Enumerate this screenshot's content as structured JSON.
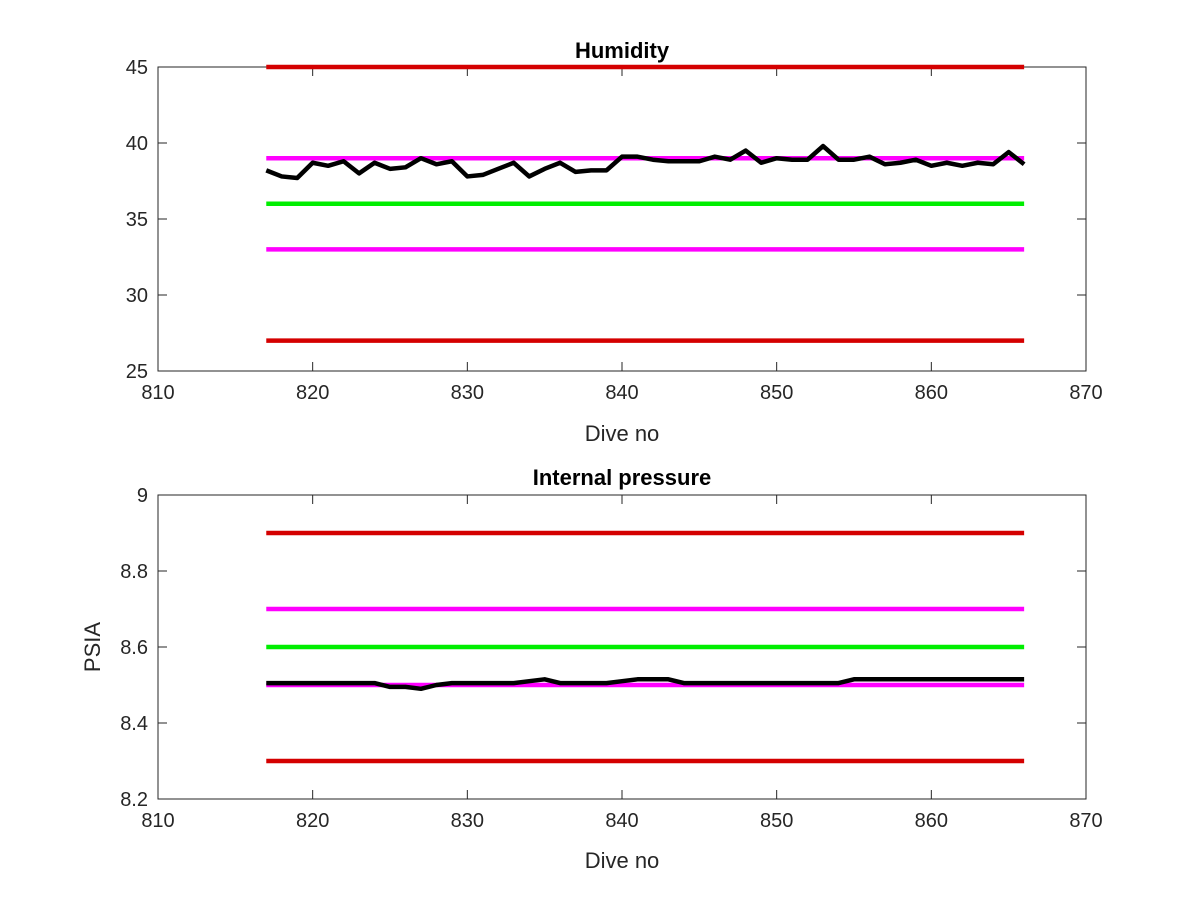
{
  "colors": {
    "series": "#000000",
    "red": "#d40000",
    "magenta": "#ff00ff",
    "green": "#00ee00",
    "axis": "#262626"
  },
  "chart_data": [
    {
      "type": "line",
      "title": "Humidity",
      "xlabel": "Dive no",
      "ylabel": "",
      "xlim": [
        810,
        870
      ],
      "ylim": [
        25,
        45
      ],
      "xticks": [
        810,
        820,
        830,
        840,
        850,
        860,
        870
      ],
      "yticks": [
        25,
        30,
        35,
        40,
        45
      ],
      "xtick_labels": [
        "810",
        "820",
        "830",
        "840",
        "850",
        "860",
        "870"
      ],
      "ytick_labels": [
        "25",
        "30",
        "35",
        "40",
        "45"
      ],
      "grid": false,
      "reference_lines": [
        {
          "y": 45,
          "x": [
            817,
            866
          ],
          "color": "red"
        },
        {
          "y": 39,
          "x": [
            817,
            866
          ],
          "color": "magenta"
        },
        {
          "y": 36,
          "x": [
            817,
            866
          ],
          "color": "green"
        },
        {
          "y": 33,
          "x": [
            817,
            866
          ],
          "color": "magenta"
        },
        {
          "y": 27,
          "x": [
            817,
            866
          ],
          "color": "red"
        }
      ],
      "series": [
        {
          "x": [
            817,
            818,
            819,
            820,
            821,
            822,
            823,
            824,
            825,
            826,
            827,
            828,
            829,
            830,
            831,
            832,
            833,
            834,
            835,
            836,
            837,
            838,
            839,
            840,
            841,
            842,
            843,
            844,
            845,
            846,
            847,
            848,
            849,
            850,
            851,
            852,
            853,
            854,
            855,
            856,
            857,
            858,
            859,
            860,
            861,
            862,
            863,
            864,
            865,
            866
          ],
          "y": [
            38.2,
            37.8,
            37.7,
            38.7,
            38.5,
            38.8,
            38.0,
            38.7,
            38.3,
            38.4,
            39.0,
            38.6,
            38.8,
            37.8,
            37.9,
            38.3,
            38.7,
            37.8,
            38.3,
            38.7,
            38.1,
            38.2,
            38.2,
            39.1,
            39.1,
            38.9,
            38.8,
            38.8,
            38.8,
            39.1,
            38.9,
            39.5,
            38.7,
            39.0,
            38.9,
            38.9,
            39.8,
            38.9,
            38.9,
            39.1,
            38.6,
            38.7,
            38.9,
            38.5,
            38.7,
            38.5,
            38.7,
            38.6,
            39.4,
            38.6
          ]
        }
      ]
    },
    {
      "type": "line",
      "title": "Internal pressure",
      "xlabel": "Dive no",
      "ylabel": "PSIA",
      "xlim": [
        810,
        870
      ],
      "ylim": [
        8.2,
        9.0
      ],
      "xticks": [
        810,
        820,
        830,
        840,
        850,
        860,
        870
      ],
      "yticks": [
        8.2,
        8.4,
        8.6,
        8.8,
        9.0
      ],
      "xtick_labels": [
        "810",
        "820",
        "830",
        "840",
        "850",
        "860",
        "870"
      ],
      "ytick_labels": [
        "8.2",
        "8.4",
        "8.6",
        "8.8",
        "9"
      ],
      "grid": false,
      "reference_lines": [
        {
          "y": 8.9,
          "x": [
            817,
            866
          ],
          "color": "red"
        },
        {
          "y": 8.7,
          "x": [
            817,
            866
          ],
          "color": "magenta"
        },
        {
          "y": 8.6,
          "x": [
            817,
            866
          ],
          "color": "green"
        },
        {
          "y": 8.5,
          "x": [
            817,
            866
          ],
          "color": "magenta"
        },
        {
          "y": 8.3,
          "x": [
            817,
            866
          ],
          "color": "red"
        }
      ],
      "series": [
        {
          "x": [
            817,
            818,
            819,
            820,
            821,
            822,
            823,
            824,
            825,
            826,
            827,
            828,
            829,
            830,
            831,
            832,
            833,
            834,
            835,
            836,
            837,
            838,
            839,
            840,
            841,
            842,
            843,
            844,
            845,
            846,
            847,
            848,
            849,
            850,
            851,
            852,
            853,
            854,
            855,
            856,
            857,
            858,
            859,
            860,
            861,
            862,
            863,
            864,
            865,
            866
          ],
          "y": [
            8.505,
            8.505,
            8.505,
            8.505,
            8.505,
            8.505,
            8.505,
            8.505,
            8.495,
            8.495,
            8.49,
            8.5,
            8.505,
            8.505,
            8.505,
            8.505,
            8.505,
            8.51,
            8.515,
            8.505,
            8.505,
            8.505,
            8.505,
            8.51,
            8.515,
            8.515,
            8.515,
            8.505,
            8.505,
            8.505,
            8.505,
            8.505,
            8.505,
            8.505,
            8.505,
            8.505,
            8.505,
            8.505,
            8.515,
            8.515,
            8.515,
            8.515,
            8.515,
            8.515,
            8.515,
            8.515,
            8.515,
            8.515,
            8.515,
            8.515
          ]
        }
      ]
    }
  ]
}
